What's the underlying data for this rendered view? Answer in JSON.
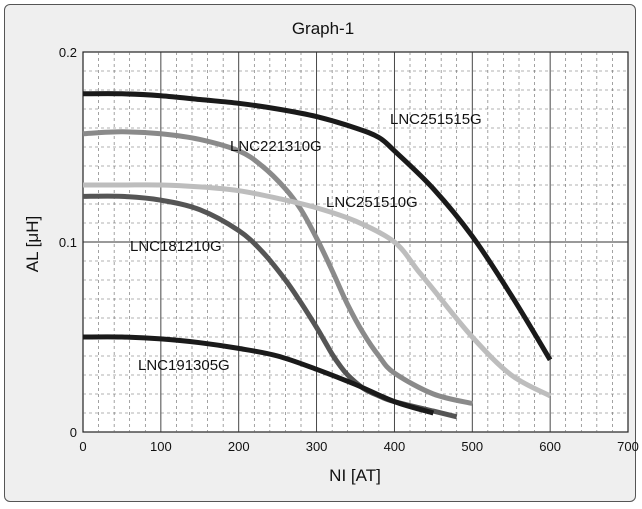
{
  "chart_data": {
    "type": "line",
    "title": "Graph-1",
    "xlabel": "NI [AT]",
    "ylabel": "AL [μH]",
    "xlim": [
      0,
      700
    ],
    "ylim": [
      0,
      0.2
    ],
    "x_ticks": [
      "0",
      "100",
      "200",
      "300",
      "400",
      "500",
      "600",
      "700"
    ],
    "y_ticks": [
      "0",
      "0.1",
      "0.2"
    ],
    "grid": true,
    "series": [
      {
        "name": "LNC251515G",
        "color": "#1a1a1a",
        "x": [
          0,
          50,
          100,
          150,
          200,
          250,
          300,
          350,
          380,
          400,
          450,
          500,
          550,
          600
        ],
        "y": [
          0.178,
          0.178,
          0.177,
          0.175,
          0.173,
          0.17,
          0.166,
          0.16,
          0.155,
          0.148,
          0.128,
          0.103,
          0.072,
          0.038
        ]
      },
      {
        "name": "LNC221310G",
        "color": "#8a8a8a",
        "x": [
          0,
          50,
          100,
          150,
          200,
          230,
          260,
          280,
          300,
          320,
          340,
          360,
          380,
          400,
          450,
          500
        ],
        "y": [
          0.157,
          0.158,
          0.157,
          0.154,
          0.148,
          0.14,
          0.128,
          0.117,
          0.102,
          0.085,
          0.067,
          0.052,
          0.04,
          0.031,
          0.02,
          0.015
        ]
      },
      {
        "name": "LNC251510G",
        "color": "#bdbdbd",
        "x": [
          0,
          50,
          100,
          150,
          200,
          250,
          300,
          350,
          400,
          430,
          450,
          500,
          550,
          600
        ],
        "y": [
          0.13,
          0.13,
          0.13,
          0.129,
          0.127,
          0.123,
          0.118,
          0.111,
          0.1,
          0.085,
          0.075,
          0.05,
          0.03,
          0.019
        ]
      },
      {
        "name": "LNC181210G",
        "color": "#555555",
        "x": [
          0,
          50,
          100,
          150,
          200,
          230,
          260,
          280,
          300,
          310,
          320,
          330,
          340,
          360,
          380,
          400,
          450,
          480
        ],
        "y": [
          0.124,
          0.124,
          0.122,
          0.117,
          0.106,
          0.095,
          0.08,
          0.068,
          0.055,
          0.048,
          0.041,
          0.035,
          0.03,
          0.023,
          0.019,
          0.016,
          0.011,
          0.008
        ]
      },
      {
        "name": "LNC191305G",
        "color": "#1a1a1a",
        "x": [
          0,
          50,
          100,
          150,
          200,
          250,
          300,
          350,
          400,
          450
        ],
        "y": [
          0.05,
          0.05,
          0.049,
          0.047,
          0.044,
          0.04,
          0.033,
          0.025,
          0.016,
          0.01
        ]
      }
    ]
  }
}
